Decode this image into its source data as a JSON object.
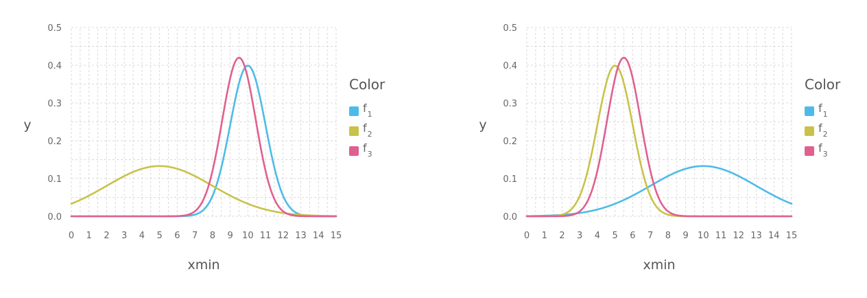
{
  "chart_data": [
    {
      "type": "line",
      "xlabel": "xmin",
      "ylabel": "y",
      "xlim": [
        0,
        15
      ],
      "ylim": [
        0,
        0.5
      ],
      "x_ticks": [
        0,
        1,
        2,
        3,
        4,
        5,
        6,
        7,
        8,
        9,
        10,
        11,
        12,
        13,
        14,
        15
      ],
      "y_ticks": [
        0.0,
        0.1,
        0.2,
        0.3,
        0.4,
        0.5
      ],
      "y_tick_labels": [
        "0.0",
        "0.1",
        "0.2",
        "0.3",
        "0.4",
        "0.5"
      ],
      "grid": true,
      "legend": {
        "title": "Color",
        "position": "right",
        "items": [
          {
            "label": "f",
            "sub": "1",
            "color": "#4dbbe8"
          },
          {
            "label": "f",
            "sub": "2",
            "color": "#c9c24a"
          },
          {
            "label": "f",
            "sub": "3",
            "color": "#e0608f"
          }
        ]
      },
      "series": [
        {
          "name": "f1",
          "color": "#4dbbe8",
          "curve": "normal",
          "mean": 10,
          "sd": 1,
          "peak": 0.399
        },
        {
          "name": "f2",
          "color": "#c9c24a",
          "curve": "normal",
          "mean": 5,
          "sd": 3,
          "peak": 0.133
        },
        {
          "name": "f3",
          "color": "#e0608f",
          "curve": "normal",
          "mean": 9.5,
          "sd": 0.95,
          "peak": 0.42
        }
      ]
    },
    {
      "type": "line",
      "xlabel": "xmin",
      "ylabel": "y",
      "xlim": [
        0,
        15
      ],
      "ylim": [
        0,
        0.5
      ],
      "x_ticks": [
        0,
        1,
        2,
        3,
        4,
        5,
        6,
        7,
        8,
        9,
        10,
        11,
        12,
        13,
        14,
        15
      ],
      "y_ticks": [
        0.0,
        0.1,
        0.2,
        0.3,
        0.4,
        0.5
      ],
      "y_tick_labels": [
        "0.0",
        "0.1",
        "0.2",
        "0.3",
        "0.4",
        "0.5"
      ],
      "grid": true,
      "legend": {
        "title": "Color",
        "position": "right",
        "items": [
          {
            "label": "f",
            "sub": "1",
            "color": "#4dbbe8"
          },
          {
            "label": "f",
            "sub": "2",
            "color": "#c9c24a"
          },
          {
            "label": "f",
            "sub": "3",
            "color": "#e0608f"
          }
        ]
      },
      "series": [
        {
          "name": "f1",
          "color": "#4dbbe8",
          "curve": "normal",
          "mean": 10,
          "sd": 3,
          "peak": 0.133
        },
        {
          "name": "f2",
          "color": "#c9c24a",
          "curve": "normal",
          "mean": 5,
          "sd": 1,
          "peak": 0.399
        },
        {
          "name": "f3",
          "color": "#e0608f",
          "curve": "normal",
          "mean": 5.5,
          "sd": 0.95,
          "peak": 0.42
        }
      ]
    }
  ]
}
